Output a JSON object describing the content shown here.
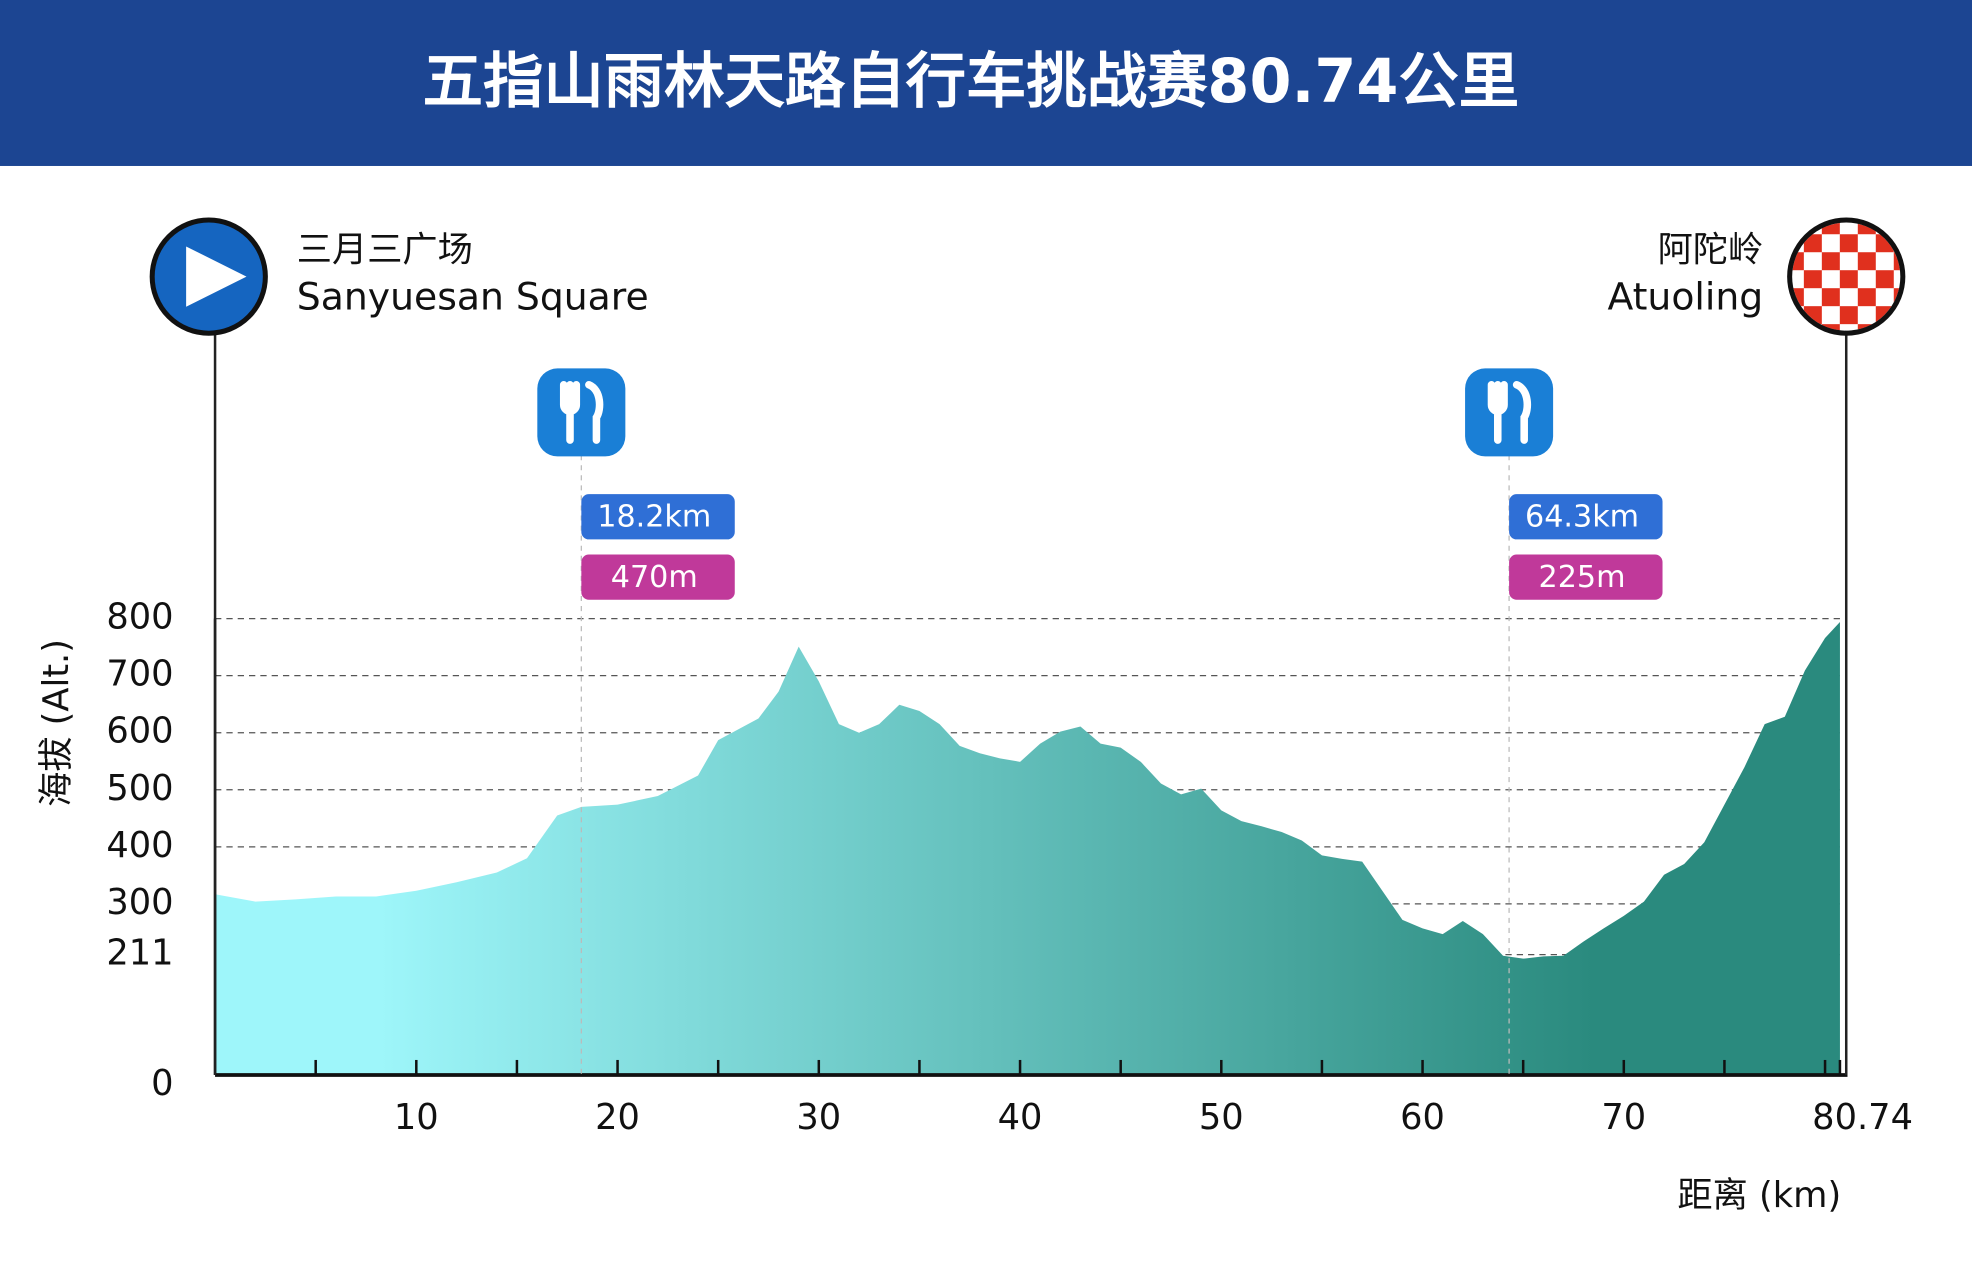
{
  "header": {
    "title": "五指山雨林天路自行车挑战赛80.74公里"
  },
  "start": {
    "name_cn": "三月三广场",
    "name_en": "Sanyuesan Square"
  },
  "finish": {
    "name_cn": "阿陀岭",
    "name_en": "Atuoling"
  },
  "chart_data": {
    "type": "area",
    "y_label": "海拔 (Alt.)",
    "x_label": "距离 (km)",
    "gradient": [
      "#9ef6fa",
      "#2a8a7e"
    ],
    "x": [
      0,
      2,
      4,
      6,
      8,
      10,
      12,
      14,
      15.5,
      17,
      18.2,
      20,
      22,
      24,
      25,
      27,
      28,
      29,
      30,
      31,
      32,
      33,
      34,
      35,
      36,
      37,
      38,
      39,
      40,
      41,
      42,
      43,
      44,
      45,
      46,
      47,
      48,
      49,
      50,
      51,
      52,
      53,
      54,
      55,
      56,
      57,
      58,
      59,
      60,
      61,
      62,
      63,
      64,
      65,
      66,
      67,
      68,
      69,
      70,
      71,
      72,
      73,
      74,
      75,
      76,
      77,
      78,
      79,
      80,
      80.74
    ],
    "series": [
      {
        "name": "海拔",
        "values": [
          317,
          304,
          308,
          313,
          313,
          323,
          338,
          355,
          380,
          455,
          470,
          474,
          489,
          525,
          587,
          625,
          672,
          751,
          690,
          615,
          600,
          615,
          649,
          638,
          615,
          577,
          564,
          555,
          549,
          581,
          602,
          611,
          581,
          574,
          549,
          511,
          492,
          502,
          464,
          445,
          436,
          426,
          411,
          385,
          379,
          374,
          323,
          272,
          257,
          247,
          270,
          247,
          209,
          204,
          208,
          209,
          234,
          257,
          279,
          304,
          351,
          370,
          408,
          474,
          540,
          615,
          628,
          709,
          766,
          794
        ]
      }
    ],
    "xlim": [
      0,
      80.74
    ],
    "ylim": [
      0,
      800
    ],
    "xticks": [
      10,
      20,
      30,
      40,
      50,
      60,
      70,
      80.74
    ],
    "xticks_minor": [
      5,
      15,
      25,
      35,
      45,
      55,
      65,
      75,
      80
    ],
    "yticks": [
      0,
      211,
      300,
      400,
      500,
      600,
      700,
      800
    ],
    "grid": true,
    "aid_stations": [
      {
        "km": {
          "value": 18.2,
          "label": "18.2km"
        },
        "elevation": {
          "value": 470,
          "label": "470m"
        }
      },
      {
        "km": {
          "value": 64.3,
          "label": "64.3km"
        },
        "elevation": {
          "value": 225,
          "label": "225m"
        }
      }
    ]
  }
}
